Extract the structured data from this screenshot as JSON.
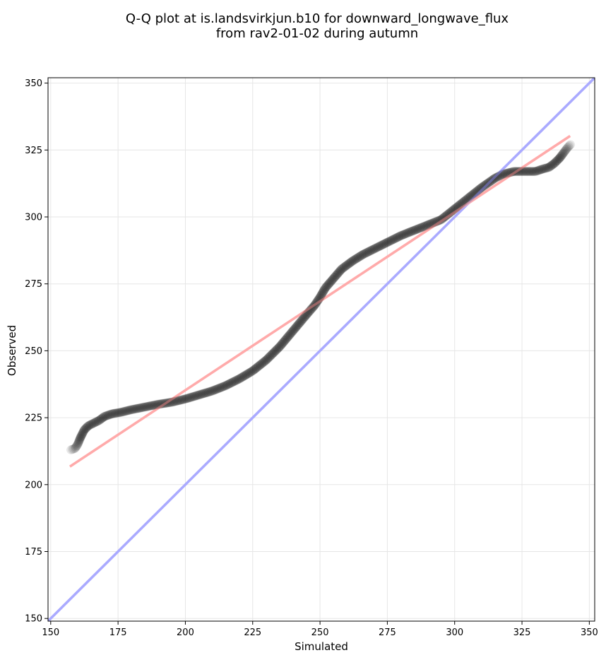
{
  "chart_data": {
    "type": "scatter",
    "title_lines": [
      "Q-Q plot at is.landsvirkjun.b10 for downward_longwave_flux",
      "from rav2-01-02 during autumn"
    ],
    "xlabel": "Simulated",
    "ylabel": "Observed",
    "xlim": [
      149,
      352
    ],
    "ylim": [
      149,
      352
    ],
    "xticks": [
      150,
      175,
      200,
      225,
      250,
      275,
      300,
      325,
      350
    ],
    "yticks": [
      150,
      175,
      200,
      225,
      250,
      275,
      300,
      325,
      350
    ],
    "grid": true,
    "lines": [
      {
        "role": "identity",
        "color": "#aaaaff",
        "points": [
          [
            149,
            149
          ],
          [
            352,
            352
          ]
        ]
      },
      {
        "role": "fit",
        "color": "#ffaaaa",
        "points": [
          [
            157.5,
            207
          ],
          [
            342.5,
            330
          ]
        ]
      }
    ],
    "quantile_curve": [
      [
        157.5,
        213
      ],
      [
        159,
        213.5
      ],
      [
        160,
        215
      ],
      [
        161,
        217.5
      ],
      [
        162.5,
        220.5
      ],
      [
        164,
        222
      ],
      [
        166,
        223
      ],
      [
        168,
        224
      ],
      [
        170,
        225.5
      ],
      [
        173,
        226.5
      ],
      [
        176,
        227
      ],
      [
        180,
        228
      ],
      [
        185,
        229
      ],
      [
        190,
        230
      ],
      [
        195,
        230.8
      ],
      [
        200,
        232
      ],
      [
        205,
        233.5
      ],
      [
        210,
        235
      ],
      [
        215,
        237
      ],
      [
        220,
        239.5
      ],
      [
        225,
        242.5
      ],
      [
        230,
        246.5
      ],
      [
        235,
        251.5
      ],
      [
        240,
        257.5
      ],
      [
        245,
        263.5
      ],
      [
        248,
        267
      ],
      [
        250,
        270
      ],
      [
        252,
        273.5
      ],
      [
        255,
        277
      ],
      [
        258,
        280.5
      ],
      [
        262,
        283.5
      ],
      [
        266,
        286
      ],
      [
        270,
        288
      ],
      [
        275,
        290.5
      ],
      [
        280,
        293
      ],
      [
        285,
        295
      ],
      [
        290,
        297
      ],
      [
        295,
        299
      ],
      [
        300,
        303
      ],
      [
        305,
        307
      ],
      [
        310,
        311
      ],
      [
        315,
        314.5
      ],
      [
        318,
        316
      ],
      [
        322,
        317
      ],
      [
        326,
        317
      ],
      [
        330,
        317
      ],
      [
        333,
        318
      ],
      [
        335,
        318.5
      ],
      [
        337,
        320
      ],
      [
        339,
        322
      ],
      [
        340.5,
        324
      ],
      [
        342,
        326
      ],
      [
        343,
        327
      ]
    ],
    "point_count": 420,
    "point_color": "#000000"
  }
}
